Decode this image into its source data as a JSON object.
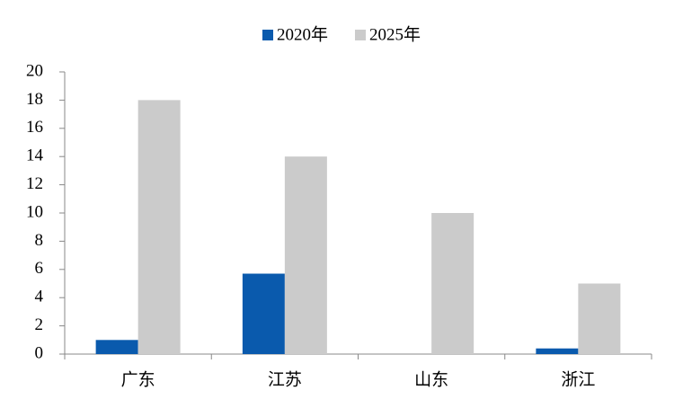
{
  "chart_data": {
    "type": "bar",
    "categories": [
      "广东",
      "江苏",
      "山东",
      "浙江"
    ],
    "series": [
      {
        "name": "2020年",
        "color": "#0a5aad",
        "values": [
          1,
          5.7,
          0,
          0.4
        ]
      },
      {
        "name": "2025年",
        "color": "#cbcbcb",
        "values": [
          18,
          14,
          10,
          5
        ]
      }
    ],
    "ylim": [
      0,
      20
    ],
    "yticks": [
      0,
      2,
      4,
      6,
      8,
      10,
      12,
      14,
      16,
      18,
      20
    ],
    "legend": "top"
  }
}
